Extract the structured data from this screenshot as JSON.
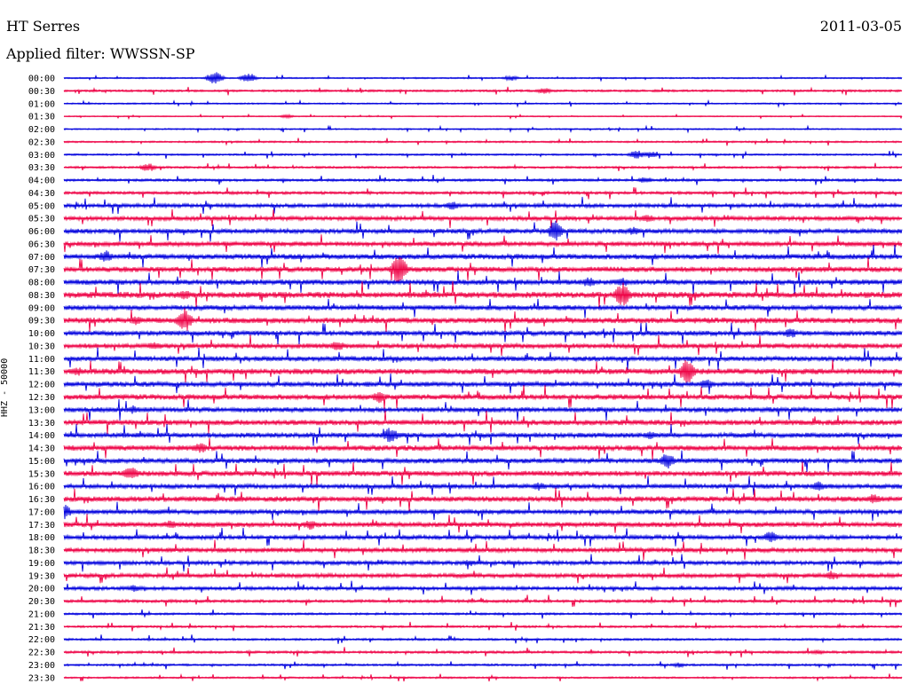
{
  "header": {
    "station": "HT Serres",
    "date": "2011-03-05",
    "filter": "Applied filter: WWSSN-SP"
  },
  "channel_label": "HHZ - 50000",
  "colors": {
    "even": "#0000dd",
    "odd": "#ee0044"
  },
  "chart_data": {
    "type": "line",
    "kind": "helicorder",
    "title": "HT Serres",
    "xlabel": "",
    "ylabel": "HHZ - 50000",
    "row_labels": [
      "00:00",
      "00:30",
      "01:00",
      "01:30",
      "02:00",
      "02:30",
      "03:00",
      "03:30",
      "04:00",
      "04:30",
      "05:00",
      "05:30",
      "06:00",
      "06:30",
      "07:00",
      "07:30",
      "08:00",
      "08:30",
      "09:00",
      "09:30",
      "10:00",
      "10:30",
      "11:00",
      "11:30",
      "12:00",
      "12:30",
      "13:00",
      "13:30",
      "14:00",
      "14:30",
      "15:00",
      "15:30",
      "16:00",
      "16:30",
      "17:00",
      "17:30",
      "18:00",
      "18:30",
      "19:00",
      "19:30",
      "20:00",
      "20:30",
      "21:00",
      "21:30",
      "22:00",
      "22:30",
      "23:00",
      "23:30"
    ],
    "row_duration_minutes": 30,
    "noise_level": [
      0.8,
      1.2,
      0.8,
      0.6,
      0.8,
      1.0,
      1.0,
      1.2,
      1.4,
      1.6,
      2.2,
      2.4,
      2.6,
      2.6,
      3.0,
      3.0,
      3.0,
      3.4,
      2.8,
      3.2,
      2.8,
      2.8,
      2.8,
      3.2,
      2.8,
      3.0,
      2.8,
      3.0,
      2.8,
      3.0,
      2.8,
      3.0,
      2.6,
      3.0,
      2.6,
      2.8,
      2.4,
      2.6,
      2.2,
      2.4,
      2.0,
      1.6,
      1.2,
      1.2,
      1.2,
      1.4,
      1.2,
      1.0
    ],
    "events": [
      {
        "row": 0,
        "minute": 5.4,
        "amplitude": 8
      },
      {
        "row": 0,
        "minute": 6.6,
        "amplitude": 6
      },
      {
        "row": 0,
        "minute": 16.0,
        "amplitude": 3
      },
      {
        "row": 1,
        "minute": 17.2,
        "amplitude": 4
      },
      {
        "row": 3,
        "minute": 8.0,
        "amplitude": 2
      },
      {
        "row": 6,
        "minute": 20.5,
        "amplitude": 5
      },
      {
        "row": 6,
        "minute": 21.0,
        "amplitude": 4
      },
      {
        "row": 7,
        "minute": 3.0,
        "amplitude": 5
      },
      {
        "row": 8,
        "minute": 20.8,
        "amplitude": 4
      },
      {
        "row": 10,
        "minute": 13.9,
        "amplitude": 5
      },
      {
        "row": 11,
        "minute": 20.9,
        "amplitude": 5
      },
      {
        "row": 12,
        "minute": 17.6,
        "amplitude": 12
      },
      {
        "row": 12,
        "minute": 20.4,
        "amplitude": 5
      },
      {
        "row": 14,
        "minute": 1.5,
        "amplitude": 7
      },
      {
        "row": 15,
        "minute": 12.0,
        "amplitude": 17
      },
      {
        "row": 16,
        "minute": 18.8,
        "amplitude": 6
      },
      {
        "row": 16,
        "minute": 20.0,
        "amplitude": 5
      },
      {
        "row": 17,
        "minute": 20.0,
        "amplitude": 14
      },
      {
        "row": 17,
        "minute": 4.3,
        "amplitude": 6
      },
      {
        "row": 19,
        "minute": 4.3,
        "amplitude": 14
      },
      {
        "row": 19,
        "minute": 2.6,
        "amplitude": 6
      },
      {
        "row": 20,
        "minute": 26.0,
        "amplitude": 6
      },
      {
        "row": 21,
        "minute": 9.8,
        "amplitude": 6
      },
      {
        "row": 21,
        "minute": 3.2,
        "amplitude": 5
      },
      {
        "row": 23,
        "minute": 22.3,
        "amplitude": 14
      },
      {
        "row": 23,
        "minute": 0.5,
        "amplitude": 5
      },
      {
        "row": 24,
        "minute": 23.0,
        "amplitude": 6
      },
      {
        "row": 25,
        "minute": 11.3,
        "amplitude": 7
      },
      {
        "row": 26,
        "minute": 2.5,
        "amplitude": 5
      },
      {
        "row": 28,
        "minute": 11.7,
        "amplitude": 9
      },
      {
        "row": 28,
        "minute": 21.0,
        "amplitude": 5
      },
      {
        "row": 29,
        "minute": 4.9,
        "amplitude": 6
      },
      {
        "row": 30,
        "minute": 21.6,
        "amplitude": 9
      },
      {
        "row": 31,
        "minute": 2.4,
        "amplitude": 8
      },
      {
        "row": 32,
        "minute": 17.0,
        "amplitude": 5
      },
      {
        "row": 32,
        "minute": 27.0,
        "amplitude": 6
      },
      {
        "row": 33,
        "minute": 29.0,
        "amplitude": 6
      },
      {
        "row": 34,
        "minute": 0.0,
        "amplitude": 9
      },
      {
        "row": 35,
        "minute": 8.8,
        "amplitude": 6
      },
      {
        "row": 35,
        "minute": 3.8,
        "amplitude": 5
      },
      {
        "row": 36,
        "minute": 25.3,
        "amplitude": 7
      },
      {
        "row": 38,
        "minute": 14.5,
        "amplitude": 4
      },
      {
        "row": 39,
        "minute": 27.5,
        "amplitude": 6
      },
      {
        "row": 40,
        "minute": 2.5,
        "amplitude": 4
      },
      {
        "row": 45,
        "minute": 27.0,
        "amplitude": 3
      },
      {
        "row": 46,
        "minute": 22.0,
        "amplitude": 3
      }
    ]
  }
}
